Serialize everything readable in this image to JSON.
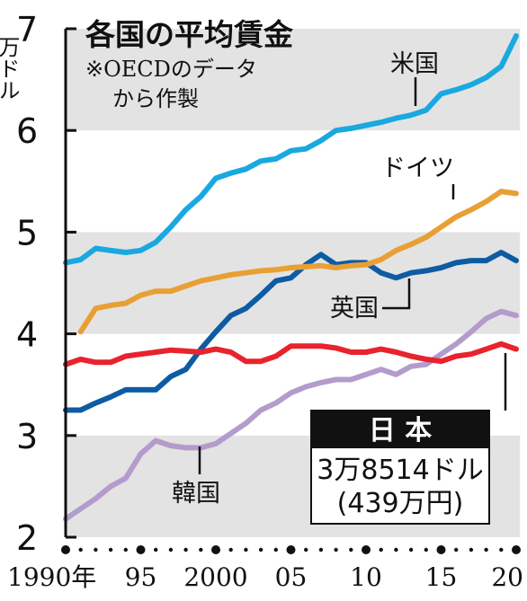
{
  "chart_data": {
    "type": "line",
    "title": "各国の平均賃金",
    "subtitle_lines": [
      "※OECDのデータ",
      "から作製"
    ],
    "ylabel": "万ドル",
    "ytick_main": "7",
    "ytick_labels": [
      "6",
      "5",
      "4",
      "3",
      "2"
    ],
    "ylim": [
      2,
      7
    ],
    "xlim": [
      1990,
      2020
    ],
    "xtick_labels": [
      {
        "x": 1990,
        "label": "1990年"
      },
      {
        "x": 1995,
        "label": "95"
      },
      {
        "x": 2000,
        "label": "2000"
      },
      {
        "x": 2005,
        "label": "05"
      },
      {
        "x": 2010,
        "label": "10"
      },
      {
        "x": 2015,
        "label": "15"
      },
      {
        "x": 2020,
        "label": "20"
      }
    ],
    "x": [
      1990,
      1991,
      1992,
      1993,
      1994,
      1995,
      1996,
      1997,
      1998,
      1999,
      2000,
      2001,
      2002,
      2003,
      2004,
      2005,
      2006,
      2007,
      2008,
      2009,
      2010,
      2011,
      2012,
      2013,
      2014,
      2015,
      2016,
      2017,
      2018,
      2019,
      2020
    ],
    "series": [
      {
        "name": "米国",
        "color": "#1aa8e0",
        "values": [
          4.7,
          4.73,
          4.84,
          4.82,
          4.8,
          4.82,
          4.9,
          5.05,
          5.22,
          5.35,
          5.53,
          5.58,
          5.62,
          5.7,
          5.72,
          5.8,
          5.82,
          5.9,
          6.0,
          6.02,
          6.05,
          6.08,
          6.12,
          6.15,
          6.2,
          6.36,
          6.4,
          6.45,
          6.52,
          6.63,
          6.93
        ]
      },
      {
        "name": "ドイツ",
        "color": "#e8a035",
        "values": [
          null,
          4.02,
          4.25,
          4.28,
          4.3,
          4.38,
          4.42,
          4.42,
          4.47,
          4.52,
          4.55,
          4.58,
          4.6,
          4.62,
          4.63,
          4.65,
          4.66,
          4.67,
          4.65,
          4.67,
          4.68,
          4.73,
          4.82,
          4.88,
          4.95,
          5.05,
          5.15,
          5.22,
          5.3,
          5.4,
          5.38
        ]
      },
      {
        "name": "英国",
        "color": "#0d5ca3",
        "values": [
          3.25,
          3.25,
          3.32,
          3.38,
          3.45,
          3.45,
          3.45,
          3.58,
          3.65,
          3.85,
          4.02,
          4.18,
          4.25,
          4.38,
          4.52,
          4.55,
          4.68,
          4.78,
          4.68,
          4.7,
          4.7,
          4.6,
          4.55,
          4.6,
          4.62,
          4.65,
          4.7,
          4.72,
          4.72,
          4.8,
          4.72
        ]
      },
      {
        "name": "日本",
        "color": "#e8232d",
        "values": [
          3.7,
          3.75,
          3.72,
          3.72,
          3.78,
          3.8,
          3.82,
          3.84,
          3.83,
          3.82,
          3.85,
          3.82,
          3.73,
          3.73,
          3.78,
          3.88,
          3.88,
          3.88,
          3.86,
          3.82,
          3.82,
          3.85,
          3.82,
          3.78,
          3.75,
          3.73,
          3.78,
          3.8,
          3.85,
          3.9,
          3.85
        ]
      },
      {
        "name": "韓国",
        "color": "#b39ccc",
        "values": [
          2.18,
          2.28,
          2.38,
          2.5,
          2.58,
          2.82,
          2.95,
          2.9,
          2.88,
          2.88,
          2.92,
          3.02,
          3.12,
          3.25,
          3.32,
          3.42,
          3.48,
          3.52,
          3.55,
          3.55,
          3.6,
          3.65,
          3.6,
          3.68,
          3.7,
          3.8,
          3.9,
          4.02,
          4.15,
          4.22,
          4.18
        ]
      }
    ],
    "japan_callout": {
      "title": "日 本",
      "value_line1": "3万8514ドル",
      "value_line2": "(439万円)"
    },
    "grid_bands": true
  }
}
